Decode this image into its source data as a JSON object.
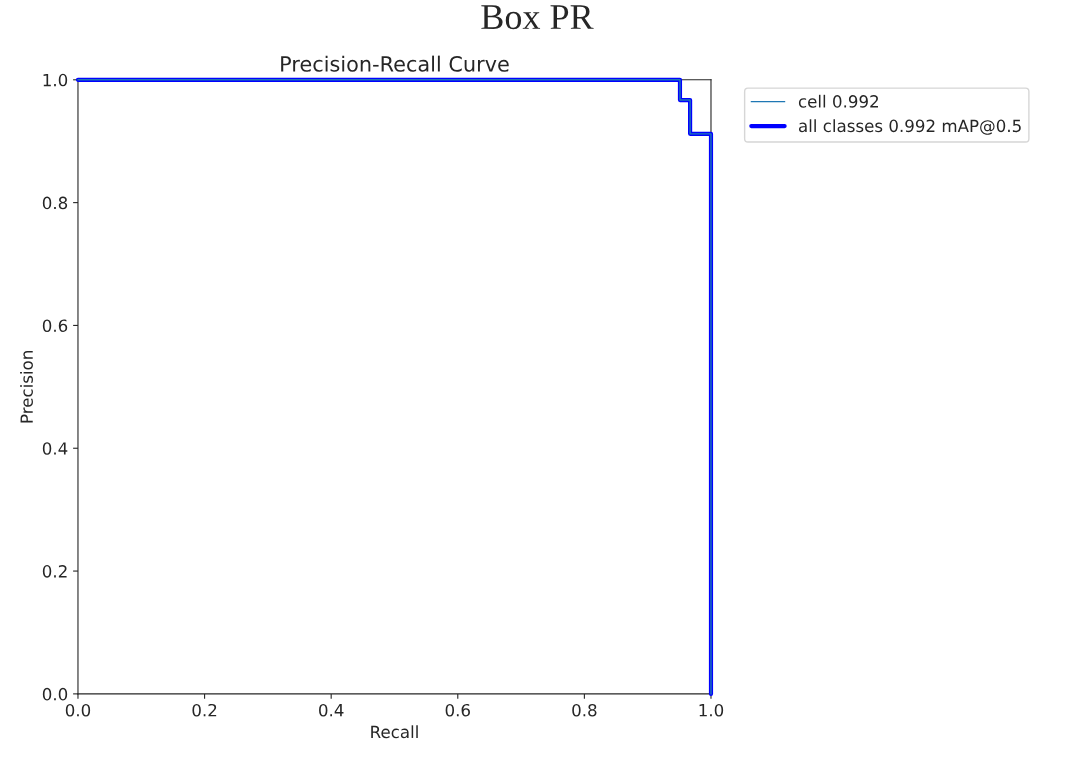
{
  "chart_data": {
    "type": "line",
    "title": "Precision-Recall Curve",
    "subtitle": "Box PR",
    "xlabel": "Recall",
    "ylabel": "Precision",
    "x": [
      0,
      0.951,
      0.951,
      0.967,
      0.967,
      1.0,
      1.0
    ],
    "series": [
      {
        "name": "cell 0.992",
        "color": "#1f77b4",
        "values": [
          1.0,
          1.0,
          0.967,
          0.967,
          0.912,
          0.912,
          0.0
        ]
      },
      {
        "name": "all classes 0.992 mAP@0.5",
        "color": "#0000ff",
        "values": [
          1.0,
          1.0,
          0.967,
          0.967,
          0.912,
          0.912,
          0.0
        ]
      }
    ],
    "xlim": [
      0,
      1
    ],
    "ylim": [
      0,
      1
    ],
    "xticks": [
      {
        "value": 0,
        "label": "0.0"
      },
      0.2,
      0.4,
      0.6,
      0.8,
      {
        "value": 1,
        "label": "1.0"
      }
    ],
    "yticks": [
      {
        "value": 0,
        "label": "0.0"
      },
      0.2,
      0.4,
      0.6,
      0.8,
      {
        "value": 1,
        "label": "1.0"
      }
    ],
    "grid": false,
    "legend": "top right",
    "line_style": "solid",
    "marker": "none"
  }
}
